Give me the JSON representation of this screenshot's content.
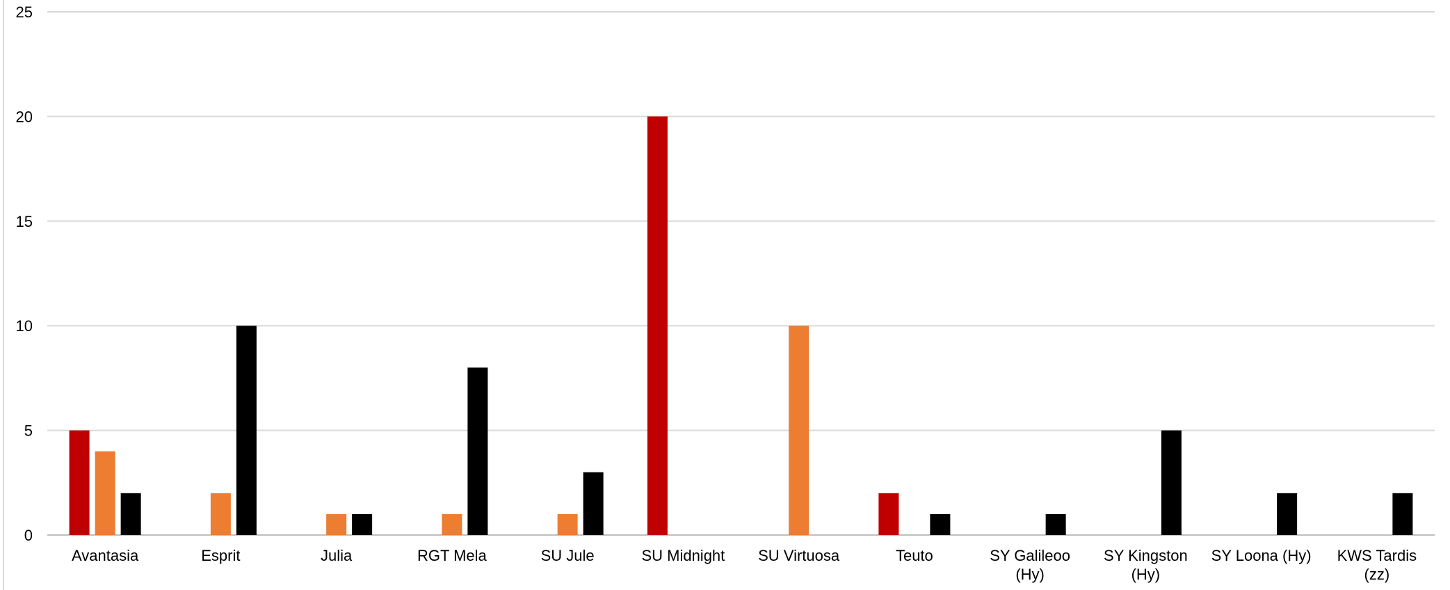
{
  "chart_data": {
    "type": "bar",
    "categories": [
      "Avantasia",
      "Esprit",
      "Julia",
      "RGT Mela",
      "SU Jule",
      "SU Midnight",
      "SU Virtuosa",
      "Teuto",
      "SY Galileoo (Hy)",
      "SY Kingston (Hy)",
      "SY Loona (Hy)",
      "KWS Tardis (zz)"
    ],
    "category_lines": [
      [
        "Avantasia"
      ],
      [
        "Esprit"
      ],
      [
        "Julia"
      ],
      [
        "RGT Mela"
      ],
      [
        "SU Jule"
      ],
      [
        "SU Midnight"
      ],
      [
        "SU Virtuosa"
      ],
      [
        "Teuto"
      ],
      [
        "SY Galileoo",
        "(Hy)"
      ],
      [
        "SY Kingston",
        "(Hy)"
      ],
      [
        "SY Loona (Hy)"
      ],
      [
        "KWS Tardis",
        "(zz)"
      ]
    ],
    "series": [
      {
        "color": "#c00000",
        "values": [
          5,
          0,
          0,
          0,
          0,
          20,
          0,
          2,
          0,
          0,
          0,
          0
        ]
      },
      {
        "color": "#ed7d31",
        "values": [
          4,
          2,
          1,
          1,
          1,
          0,
          10,
          0,
          0,
          0,
          0,
          0
        ]
      },
      {
        "color": "#000000",
        "values": [
          2,
          10,
          1,
          8,
          3,
          0,
          0,
          1,
          1,
          5,
          2,
          2
        ]
      }
    ],
    "yticks": [
      0,
      5,
      10,
      15,
      20,
      25
    ],
    "ylim": [
      0,
      25
    ],
    "grid": true,
    "legend": false
  }
}
